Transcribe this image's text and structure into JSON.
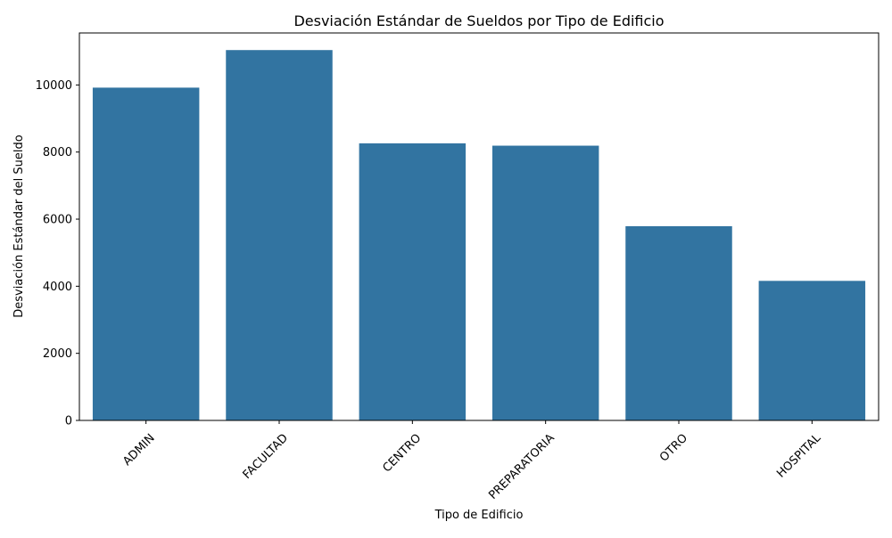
{
  "chart_data": {
    "type": "bar",
    "title": "Desviación Estándar de Sueldos por Tipo de Edificio",
    "xlabel": "Tipo de Edificio",
    "ylabel": "Desviación Estándar del Sueldo",
    "categories": [
      "ADMIN",
      "FACULTAD",
      "CENTRO",
      "PREPARATORIA",
      "OTRO",
      "HOSPITAL"
    ],
    "values": [
      9920,
      11040,
      8260,
      8190,
      5790,
      4160
    ],
    "ylim": [
      0,
      11550
    ],
    "yticks": [
      0,
      2000,
      4000,
      6000,
      8000,
      10000
    ],
    "bar_color": "#3274a1",
    "grid": false,
    "legend": "none",
    "xtick_rotation": 45
  }
}
